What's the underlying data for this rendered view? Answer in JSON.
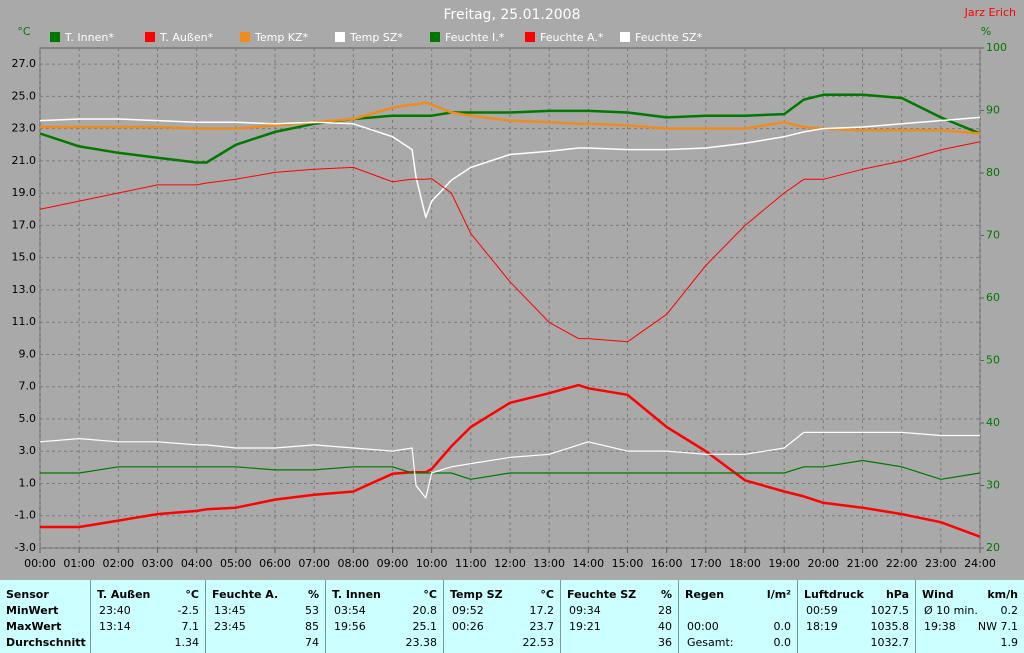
{
  "chart_data": {
    "type": "line",
    "title": "Freitag, 25.01.2008",
    "author": "Jarz Erich",
    "ylabel": "°C",
    "y2label": "%",
    "x": [
      0,
      1,
      2,
      3,
      4,
      4.25,
      5,
      6,
      7,
      8,
      9,
      9.5,
      9.6,
      9.85,
      10,
      10.5,
      11,
      12,
      13,
      13.75,
      14,
      15,
      16,
      17,
      18,
      19,
      19.5,
      20,
      21,
      22,
      23,
      24
    ],
    "xlim": [
      0,
      24
    ],
    "xticks": [
      {
        "value": 0,
        "label": "00:00"
      },
      {
        "value": 1,
        "label": "01:00"
      },
      {
        "value": 2,
        "label": "02:00"
      },
      {
        "value": 3,
        "label": "03:00"
      },
      {
        "value": 4,
        "label": "04:00"
      },
      {
        "value": 5,
        "label": "05:00"
      },
      {
        "value": 6,
        "label": "06:00"
      },
      {
        "value": 7,
        "label": "07:00"
      },
      {
        "value": 8,
        "label": "08:00"
      },
      {
        "value": 9,
        "label": "09:00"
      },
      {
        "value": 10,
        "label": "10:00"
      },
      {
        "value": 11,
        "label": "11:00"
      },
      {
        "value": 12,
        "label": "12:00"
      },
      {
        "value": 13,
        "label": "13:00"
      },
      {
        "value": 14,
        "label": "14:00"
      },
      {
        "value": 15,
        "label": "15:00"
      },
      {
        "value": 16,
        "label": "16:00"
      },
      {
        "value": 17,
        "label": "17:00"
      },
      {
        "value": 18,
        "label": "18:00"
      },
      {
        "value": 19,
        "label": "19:00"
      },
      {
        "value": 20,
        "label": "20:00"
      },
      {
        "value": 21,
        "label": "21:00"
      },
      {
        "value": 22,
        "label": "22:00"
      },
      {
        "value": 23,
        "label": "23:00"
      },
      {
        "value": 24,
        "label": "24:00"
      }
    ],
    "ylim": [
      -3,
      28
    ],
    "yticks": [
      {
        "value": -3,
        "label": "-3.0"
      },
      {
        "value": -1,
        "label": "-1.0"
      },
      {
        "value": 1,
        "label": "1.0"
      },
      {
        "value": 3,
        "label": "3.0"
      },
      {
        "value": 5,
        "label": "5.0"
      },
      {
        "value": 7,
        "label": "7.0"
      },
      {
        "value": 9,
        "label": "9.0"
      },
      {
        "value": 11,
        "label": "11.0"
      },
      {
        "value": 13,
        "label": "13.0"
      },
      {
        "value": 15,
        "label": "15.0"
      },
      {
        "value": 17,
        "label": "17.0"
      },
      {
        "value": 19,
        "label": "19.0"
      },
      {
        "value": 21,
        "label": "21.0"
      },
      {
        "value": 23,
        "label": "23.0"
      },
      {
        "value": 25,
        "label": "25.0"
      },
      {
        "value": 27,
        "label": "27.0"
      }
    ],
    "y2lim": [
      20,
      100
    ],
    "y2ticks": [
      20,
      30,
      40,
      50,
      60,
      70,
      80,
      90,
      100
    ],
    "grid": true,
    "series": [
      {
        "name": "T. Innen*",
        "color": "#007800",
        "line_width": 2.5,
        "values": [
          22.7,
          21.9,
          21.5,
          21.2,
          20.9,
          20.9,
          22.0,
          22.8,
          23.3,
          23.6,
          23.8,
          23.8,
          23.8,
          23.8,
          23.8,
          24.0,
          24.0,
          24.0,
          24.1,
          24.1,
          24.1,
          24.0,
          23.7,
          23.8,
          23.8,
          23.9,
          24.8,
          25.1,
          25.1,
          24.9,
          23.7,
          22.7
        ]
      },
      {
        "name": "T. Außen*",
        "color": "#ff0000",
        "line_width": 2.5,
        "values": [
          -1.7,
          -1.7,
          -1.3,
          -0.9,
          -0.7,
          -0.6,
          -0.5,
          0,
          0.3,
          0.5,
          1.6,
          1.7,
          1.7,
          1.7,
          1.9,
          3.3,
          4.5,
          6.0,
          6.6,
          7.1,
          6.9,
          6.5,
          4.5,
          3.0,
          1.2,
          0.5,
          0.2,
          -0.2,
          -0.5,
          -0.9,
          -1.4,
          -2.3
        ]
      },
      {
        "name": "Temp KZ*",
        "color": "#f08c1e",
        "line_width": 2.5,
        "values": [
          23.1,
          23.1,
          23.1,
          23.1,
          23.0,
          23.0,
          23.0,
          23.2,
          23.4,
          23.6,
          24.3,
          24.5,
          24.5,
          24.6,
          24.5,
          24.0,
          23.8,
          23.5,
          23.4,
          23.3,
          23.3,
          23.2,
          23.0,
          23.0,
          23.0,
          23.4,
          23.1,
          23.0,
          22.9,
          22.9,
          22.9,
          22.7
        ]
      },
      {
        "name": "Temp SZ*",
        "color": "#ffffff",
        "line_width": 1.5,
        "values": [
          23.5,
          23.6,
          23.6,
          23.5,
          23.4,
          23.4,
          23.4,
          23.3,
          23.4,
          23.3,
          22.5,
          21.7,
          20.0,
          17.5,
          18.5,
          19.8,
          20.6,
          21.4,
          21.6,
          21.8,
          21.8,
          21.7,
          21.7,
          21.8,
          22.1,
          22.5,
          22.8,
          23.0,
          23.1,
          23.3,
          23.5,
          23.7
        ]
      },
      {
        "name": "Feuchte I.*",
        "color": "#007800",
        "line_width": 1.2,
        "axis": "y2",
        "values": [
          32,
          32,
          33,
          33,
          33,
          33,
          33,
          32.5,
          32.5,
          33,
          33,
          32,
          32,
          32,
          32,
          32,
          31,
          32,
          32,
          32,
          32,
          32,
          32,
          32,
          32,
          32,
          33,
          33,
          34,
          33,
          31,
          32
        ]
      },
      {
        "name": "Feuchte A.*",
        "color": "#ff0000",
        "line_width": 1,
        "axis": "y2",
        "values": [
          74.2,
          75.5,
          76.8,
          78.1,
          78.1,
          78.4,
          79,
          80.1,
          80.6,
          80.9,
          78.6,
          79,
          79,
          79,
          79.1,
          76.8,
          70.3,
          62.6,
          56.1,
          53.5,
          53.5,
          53,
          57.4,
          65.2,
          71.6,
          76.8,
          79,
          79,
          80.6,
          81.9,
          83.7,
          85
        ]
      },
      {
        "name": "Feuchte SZ*",
        "color": "#ffffff",
        "line_width": 1.2,
        "axis": "y2",
        "values": [
          37,
          37.5,
          37,
          37,
          36.5,
          36.5,
          36,
          36,
          36.5,
          36,
          35.5,
          36,
          30,
          28,
          32,
          33,
          33.5,
          34.5,
          35,
          36.5,
          37,
          35.5,
          35.5,
          35,
          35,
          36,
          38.5,
          38.5,
          38.5,
          38.5,
          38,
          38
        ]
      }
    ]
  },
  "table": {
    "header_label": "Sensor",
    "row_labels": [
      "MinWert",
      "MaxWert",
      "Durchschnitt"
    ],
    "columns": [
      {
        "name": "T. Außen",
        "unit": "°C",
        "rows": [
          [
            "23:40",
            "-2.5"
          ],
          [
            "13:14",
            "7.1"
          ],
          [
            null,
            "1.34"
          ]
        ]
      },
      {
        "name": "Feuchte A.",
        "unit": "%",
        "rows": [
          [
            "13:45",
            "53"
          ],
          [
            "23:45",
            "85"
          ],
          [
            null,
            "74"
          ]
        ]
      },
      {
        "name": "T. Innen",
        "unit": "°C",
        "rows": [
          [
            "03:54",
            "20.8"
          ],
          [
            "19:56",
            "25.1"
          ],
          [
            null,
            "23.38"
          ]
        ]
      },
      {
        "name": "Temp SZ",
        "unit": "°C",
        "rows": [
          [
            "09:52",
            "17.2"
          ],
          [
            "00:26",
            "23.7"
          ],
          [
            null,
            "22.53"
          ]
        ]
      },
      {
        "name": "Feuchte SZ",
        "unit": "%",
        "rows": [
          [
            "09:34",
            "28"
          ],
          [
            "19:21",
            "40"
          ],
          [
            null,
            "36"
          ]
        ]
      },
      {
        "name": "Regen",
        "unit": "l/m²",
        "rows": [
          [
            null,
            null
          ],
          [
            "00:00",
            "0.0"
          ],
          [
            "Gesamt:",
            "0.0"
          ]
        ]
      },
      {
        "name": "Luftdruck",
        "unit": "hPa",
        "rows": [
          [
            "00:59",
            "1027.5"
          ],
          [
            "18:19",
            "1035.8"
          ],
          [
            null,
            "1032.7"
          ]
        ]
      },
      {
        "name": "Wind",
        "unit": "km/h",
        "rows": [
          [
            "Ø 10 min.",
            "0.2"
          ],
          [
            "19:38",
            "NW 7.1"
          ],
          [
            null,
            "1.9"
          ]
        ]
      }
    ]
  }
}
